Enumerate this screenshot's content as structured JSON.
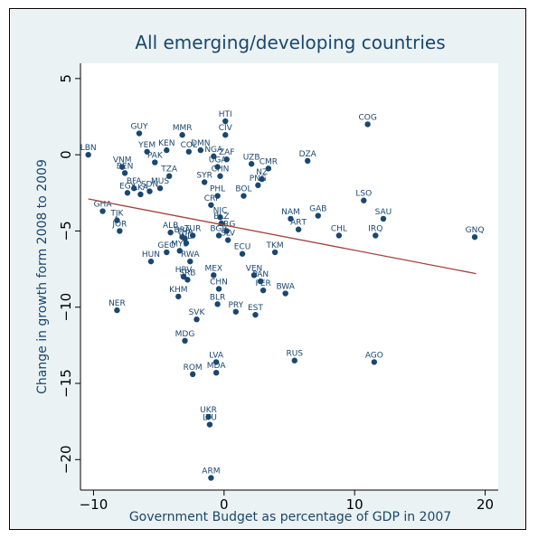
{
  "chart_data": {
    "type": "scatter",
    "title": "All emerging/developing countries",
    "xlabel": "Government Budget as percentage of GDP in 2007",
    "ylabel": "Change in growth form 2008 to 2009",
    "xlim": [
      -11,
      21
    ],
    "ylim": [
      -22,
      6
    ],
    "xticks": [
      -10,
      0,
      10,
      20
    ],
    "yticks": [
      5,
      0,
      -5,
      -10,
      -15,
      -20
    ],
    "grid": false,
    "legend": "none",
    "colors": {
      "plot_bg": "#ffffff",
      "outer_bg": "#eaf2f3",
      "points": "#1a476f",
      "fit_line": "#a0413d",
      "text": "#1a476f"
    },
    "fit_line": {
      "x": [
        -10.4,
        19.3
      ],
      "y": [
        -2.9,
        -7.8
      ]
    },
    "points": [
      {
        "label": "LBN",
        "x": -10.4,
        "y": 0.0
      },
      {
        "label": "GHA",
        "x": -9.3,
        "y": -3.7
      },
      {
        "label": "TJK",
        "x": -8.2,
        "y": -4.3
      },
      {
        "label": "JOR",
        "x": -8.0,
        "y": -5.0
      },
      {
        "label": "NER",
        "x": -8.2,
        "y": -10.2
      },
      {
        "label": "VNM",
        "x": -7.8,
        "y": -0.8
      },
      {
        "label": "BEN",
        "x": -7.6,
        "y": -1.2
      },
      {
        "label": "EGY",
        "x": -7.4,
        "y": -2.5
      },
      {
        "label": "BFA",
        "x": -6.9,
        "y": -2.2
      },
      {
        "label": "GUY",
        "x": -6.5,
        "y": 1.4
      },
      {
        "label": "LKA",
        "x": -6.4,
        "y": -2.6
      },
      {
        "label": "YEM",
        "x": -5.9,
        "y": 0.2
      },
      {
        "label": "SDN",
        "x": -5.7,
        "y": -2.4
      },
      {
        "label": "PAK",
        "x": -5.3,
        "y": -0.5
      },
      {
        "label": "MUS",
        "x": -4.9,
        "y": -2.2
      },
      {
        "label": "HUN",
        "x": -5.6,
        "y": -7.0
      },
      {
        "label": "GEO",
        "x": -4.4,
        "y": -6.4
      },
      {
        "label": "ALB",
        "x": -4.1,
        "y": -5.1
      },
      {
        "label": "KEN",
        "x": -4.4,
        "y": 0.3
      },
      {
        "label": "TZA",
        "x": -4.2,
        "y": -1.4
      },
      {
        "label": "MMR",
        "x": -3.2,
        "y": 1.3
      },
      {
        "label": "COL",
        "x": -2.7,
        "y": 0.2
      },
      {
        "label": "THA",
        "x": -3.0,
        "y": -5.5
      },
      {
        "label": "BRA",
        "x": -3.2,
        "y": -5.4
      },
      {
        "label": "TUR",
        "x": -2.4,
        "y": -5.3
      },
      {
        "label": "IND",
        "x": -2.9,
        "y": -5.8
      },
      {
        "label": "MYS",
        "x": -3.4,
        "y": -6.3
      },
      {
        "label": "RWA",
        "x": -2.6,
        "y": -7.0
      },
      {
        "label": "HRV",
        "x": -3.1,
        "y": -8.0
      },
      {
        "label": "SRB",
        "x": -2.8,
        "y": -8.2
      },
      {
        "label": "KHM",
        "x": -3.5,
        "y": -9.3
      },
      {
        "label": "MDG",
        "x": -3.0,
        "y": -12.2
      },
      {
        "label": "ROM",
        "x": -2.4,
        "y": -14.4
      },
      {
        "label": "DMN",
        "x": -1.8,
        "y": 0.3
      },
      {
        "label": "CIV",
        "x": 0.1,
        "y": 1.3
      },
      {
        "label": "HTI",
        "x": 0.1,
        "y": 2.2
      },
      {
        "label": "NGA",
        "x": -0.8,
        "y": -0.1
      },
      {
        "label": "ZAF",
        "x": 0.2,
        "y": -0.3
      },
      {
        "label": "UGA",
        "x": -0.5,
        "y": -0.8
      },
      {
        "label": "CHN",
        "x": -0.3,
        "y": -1.4
      },
      {
        "label": "PHL",
        "x": -0.5,
        "y": -2.7
      },
      {
        "label": "SYR",
        "x": -1.5,
        "y": -1.8
      },
      {
        "label": "CRI",
        "x": -1.0,
        "y": -3.3
      },
      {
        "label": "NIC",
        "x": -0.3,
        "y": -4.1
      },
      {
        "label": "BLZ",
        "x": -0.2,
        "y": -4.5
      },
      {
        "label": "ARG",
        "x": 0.2,
        "y": -5.0
      },
      {
        "label": "BGR",
        "x": -0.4,
        "y": -5.3
      },
      {
        "label": "SLV",
        "x": 0.3,
        "y": -5.6
      },
      {
        "label": "MEX",
        "x": -0.8,
        "y": -7.9
      },
      {
        "label": "UKR",
        "x": -1.2,
        "y": -17.2
      },
      {
        "label": "LTU",
        "x": -1.1,
        "y": -17.7
      },
      {
        "label": "LVA",
        "x": -0.6,
        "y": -13.6
      },
      {
        "label": "MDA",
        "x": -0.6,
        "y": -14.3
      },
      {
        "label": "ARM",
        "x": -1.0,
        "y": -21.2
      },
      {
        "label": "SVK",
        "x": -2.1,
        "y": -10.8
      },
      {
        "label": "BLR",
        "x": -0.5,
        "y": -9.8
      },
      {
        "label": "PRY",
        "x": 0.9,
        "y": -10.3
      },
      {
        "label": "EST",
        "x": 2.4,
        "y": -10.5
      },
      {
        "label": "CHN",
        "x": -0.4,
        "y": -8.8
      },
      {
        "label": "ECU",
        "x": 1.4,
        "y": -6.5
      },
      {
        "label": "VEN",
        "x": 2.3,
        "y": -7.9
      },
      {
        "label": "PAN",
        "x": 2.8,
        "y": -8.3
      },
      {
        "label": "PER",
        "x": 3.0,
        "y": -8.9
      },
      {
        "label": "BWA",
        "x": 4.7,
        "y": -9.1
      },
      {
        "label": "TKM",
        "x": 3.9,
        "y": -6.4
      },
      {
        "label": "UZB",
        "x": 2.1,
        "y": -0.6
      },
      {
        "label": "CMR",
        "x": 3.4,
        "y": -0.9
      },
      {
        "label": "PNG",
        "x": 2.6,
        "y": -2.0
      },
      {
        "label": "NZ",
        "x": 2.9,
        "y": -1.6
      },
      {
        "label": "BOL",
        "x": 1.5,
        "y": -2.7
      },
      {
        "label": "DZA",
        "x": 6.4,
        "y": -0.4
      },
      {
        "label": "NAM",
        "x": 5.1,
        "y": -4.2
      },
      {
        "label": "ARТ",
        "x": 5.7,
        "y": -4.9
      },
      {
        "label": "GAB",
        "x": 7.2,
        "y": -4.0
      },
      {
        "label": "CHL",
        "x": 8.8,
        "y": -5.3
      },
      {
        "label": "LSO",
        "x": 10.7,
        "y": -3.0
      },
      {
        "label": "SAU",
        "x": 12.2,
        "y": -4.2
      },
      {
        "label": "IRQ",
        "x": 11.6,
        "y": -5.3
      },
      {
        "label": "COG",
        "x": 11.0,
        "y": 2.0
      },
      {
        "label": "RUS",
        "x": 5.4,
        "y": -13.5
      },
      {
        "label": "AGO",
        "x": 11.5,
        "y": -13.6
      },
      {
        "label": "GNQ",
        "x": 19.2,
        "y": -5.4
      }
    ]
  }
}
